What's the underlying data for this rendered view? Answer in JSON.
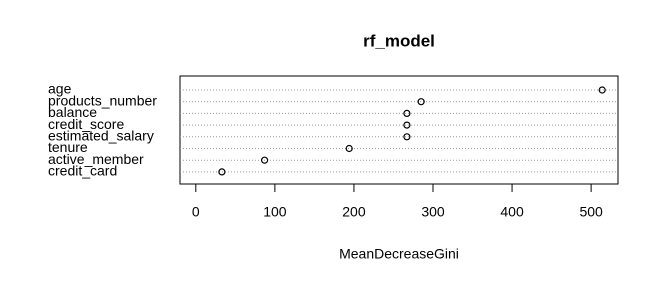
{
  "chart_data": {
    "type": "dot",
    "title": "rf_model",
    "xlabel": "MeanDecreaseGini",
    "categories": [
      "age",
      "products_number",
      "balance",
      "credit_score",
      "estimated_salary",
      "tenure",
      "active_member",
      "credit_card"
    ],
    "values": [
      514,
      285,
      267,
      267,
      267,
      194,
      87,
      33
    ],
    "xlim": [
      -20,
      534
    ],
    "xticks": [
      0,
      100,
      200,
      300,
      400,
      500
    ],
    "grid": true,
    "color": "#000000"
  }
}
